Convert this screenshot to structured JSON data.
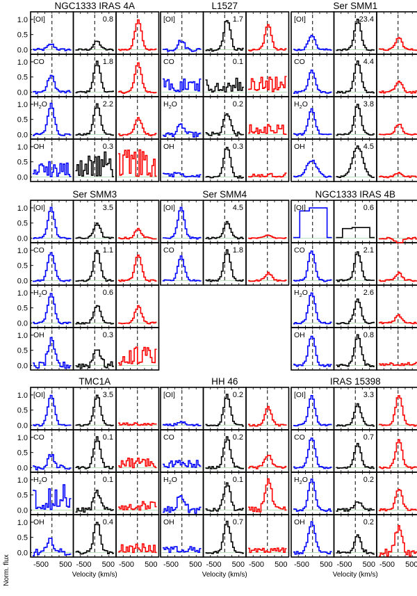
{
  "chart_data": {
    "type": "line",
    "xlabel": "Velocity (km/s)",
    "ylabel": "Norm. flux",
    "x_tick_labels": [
      "-500",
      "500",
      "-500",
      "500",
      "-500",
      "500"
    ],
    "y_tick_labels": [
      "0.0",
      "0.5",
      "1.0"
    ],
    "ylim": [
      -0.15,
      1.25
    ],
    "species": [
      "[OI]",
      "CO",
      "H2O",
      "OH"
    ],
    "component_colors": {
      "blue": "#0000ff",
      "broad": "#000000",
      "red": "#ff0000",
      "zero_line": "#b8e0b8"
    },
    "sources": [
      {
        "name": "NGC1333 IRAS 4A",
        "ratios": [
          "0.8",
          "1.8",
          "2.2",
          "0.3"
        ]
      },
      {
        "name": "L1527",
        "ratios": [
          "1.7",
          "0.1",
          "0.2",
          "0.3"
        ]
      },
      {
        "name": "Ser SMM1",
        "ratios": [
          "23.4",
          "4.4",
          "3.8",
          "4.5"
        ]
      },
      {
        "name": "Ser SMM3",
        "ratios": [
          "3.5",
          "1.1",
          "0.6",
          "0.3"
        ]
      },
      {
        "name": "Ser SMM4",
        "ratios": [
          "4.5",
          "1.8"
        ]
      },
      {
        "name": "NGC1333 IRAS 4B",
        "ratios": [
          "0.6",
          "2.1",
          "2.6",
          "0.8"
        ]
      },
      {
        "name": "TMC1A",
        "ratios": [
          "3.5",
          "0.1",
          "0.1",
          "0.4"
        ]
      },
      {
        "name": "HH 46",
        "ratios": [
          "0.2",
          "0.2",
          "0.1",
          "0.7"
        ]
      },
      {
        "name": "IRAS 15398",
        "ratios": [
          "3.3",
          "0.7",
          "0.2",
          "0.2"
        ]
      }
    ]
  }
}
